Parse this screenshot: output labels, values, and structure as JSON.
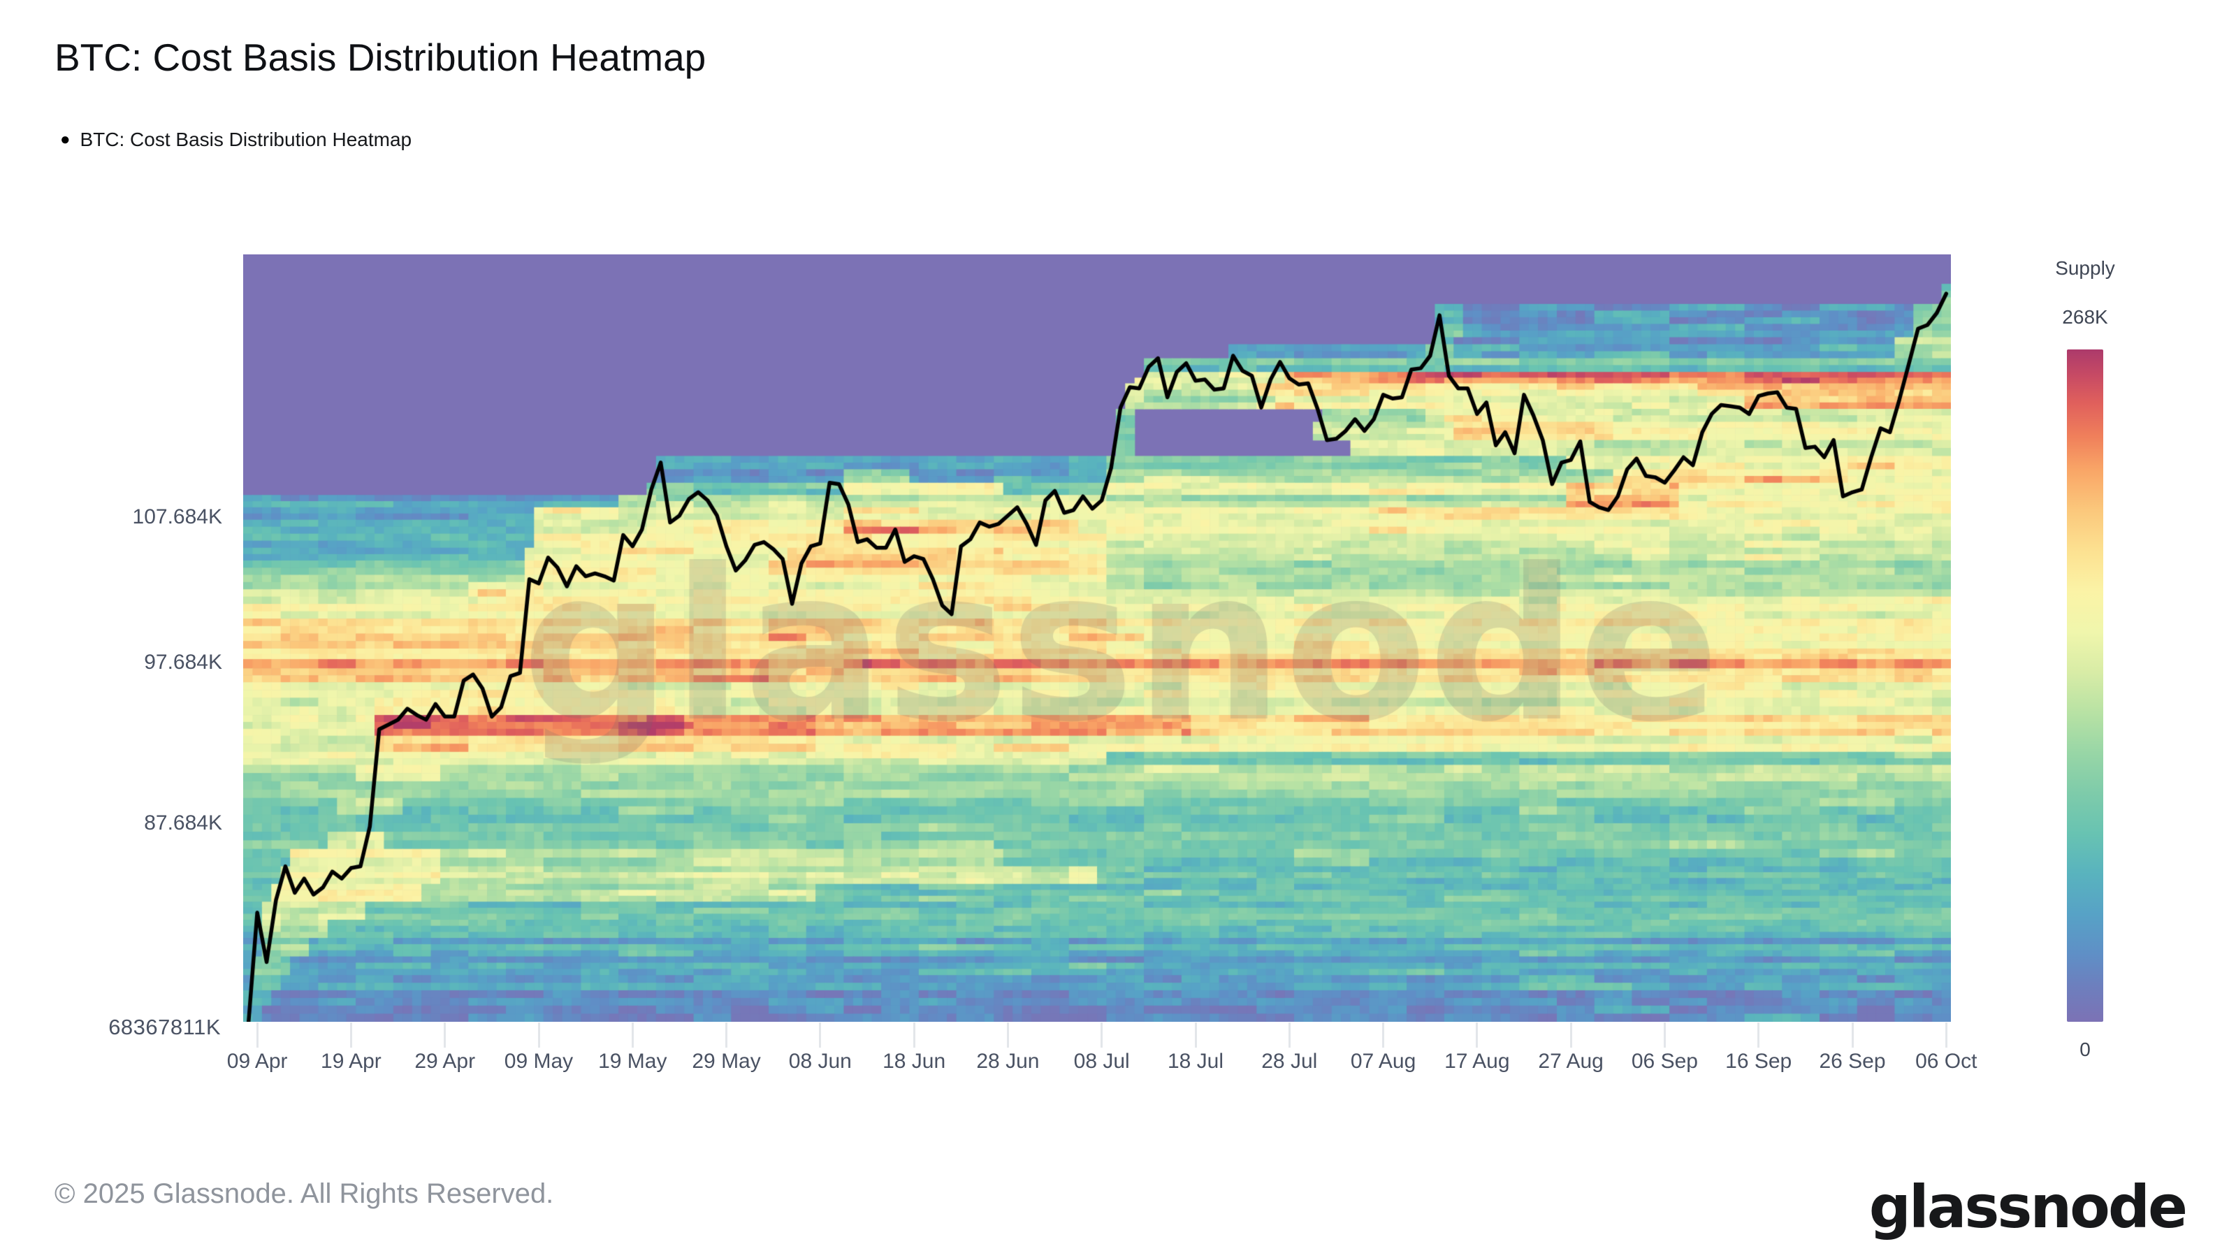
{
  "header": {
    "title": "BTC: Cost Basis Distribution Heatmap"
  },
  "legend": {
    "marker": "●",
    "label": "BTC: Cost Basis Distribution Heatmap"
  },
  "watermark": "glassnode",
  "footer": {
    "copyright": "© 2025 Glassnode. All Rights Reserved.",
    "brand": "glassnode"
  },
  "colorbar": {
    "title": "Supply",
    "max_label": "268K",
    "min_label": "0",
    "zero_color": "#7C72B5",
    "stops": [
      [
        0.0,
        "#7C72B5"
      ],
      [
        0.05,
        "#6E7EBD"
      ],
      [
        0.1,
        "#5F8FC6"
      ],
      [
        0.16,
        "#57A2C6"
      ],
      [
        0.22,
        "#59B3BE"
      ],
      [
        0.28,
        "#68C3B2"
      ],
      [
        0.34,
        "#7ECBAA"
      ],
      [
        0.4,
        "#98D6A6"
      ],
      [
        0.46,
        "#B8E2A4"
      ],
      [
        0.52,
        "#D8ECA6"
      ],
      [
        0.58,
        "#F0F6AC"
      ],
      [
        0.64,
        "#FBF3A6"
      ],
      [
        0.7,
        "#FCE191"
      ],
      [
        0.76,
        "#FBC87C"
      ],
      [
        0.82,
        "#F9A667"
      ],
      [
        0.87,
        "#F0805B"
      ],
      [
        0.92,
        "#E0605C"
      ],
      [
        0.96,
        "#C84B64"
      ],
      [
        1.0,
        "#AC3A6B"
      ]
    ]
  },
  "axes": {
    "y_ticks": [
      {
        "label": "107.684K",
        "price_k": 107.684
      },
      {
        "label": "97.684K",
        "price_k": 97.684
      },
      {
        "label": "87.684K",
        "price_k": 87.684
      }
    ],
    "y_axis_bottom_label": "68367811K",
    "x_ticks": [
      "09 Apr",
      "19 Apr",
      "29 Apr",
      "09 May",
      "19 May",
      "29 May",
      "08 Jun",
      "18 Jun",
      "28 Jun",
      "08 Jul",
      "18 Jul",
      "28 Jul",
      "07 Aug",
      "17 Aug",
      "27 Aug",
      "06 Sep",
      "16 Sep",
      "26 Sep",
      "06 Oct"
    ],
    "x_tick_day_index": [
      1,
      11,
      21,
      31,
      41,
      51,
      61,
      71,
      81,
      91,
      101,
      111,
      121,
      131,
      141,
      151,
      161,
      171,
      181
    ]
  },
  "chart_data": {
    "type": "heatmap",
    "title": "BTC: Cost Basis Distribution Heatmap",
    "x_start_date": "2025-04-08",
    "x_end_date": "2025-10-06",
    "days": 182,
    "price_scale": "log",
    "price_range_k": [
      76.6,
      128.5
    ],
    "supply_range": [
      0,
      268000
    ],
    "line_color": "#000000",
    "initial_max_visited_k": 108.6,
    "price_line_k": [
      76.3,
      82.6,
      79.9,
      83.3,
      85.2,
      83.7,
      84.5,
      83.6,
      84.0,
      84.9,
      84.5,
      85.1,
      85.2,
      87.5,
      93.4,
      93.7,
      94.0,
      94.7,
      94.3,
      94.0,
      95.0,
      94.2,
      94.2,
      96.5,
      96.9,
      96.0,
      94.2,
      94.8,
      96.8,
      97.0,
      103.3,
      103.0,
      104.8,
      104.1,
      102.8,
      104.2,
      103.5,
      103.7,
      103.5,
      103.2,
      106.4,
      105.6,
      106.8,
      109.7,
      111.7,
      107.3,
      107.8,
      109.0,
      109.5,
      108.9,
      107.8,
      105.6,
      103.9,
      104.6,
      105.7,
      105.9,
      105.4,
      104.7,
      101.6,
      104.4,
      105.6,
      105.8,
      110.2,
      110.1,
      108.6,
      105.9,
      106.1,
      105.5,
      105.5,
      106.8,
      104.5,
      104.9,
      104.7,
      103.3,
      101.5,
      100.9,
      105.6,
      106.1,
      107.3,
      107.0,
      107.2,
      107.8,
      108.4,
      107.2,
      105.7,
      108.9,
      109.6,
      108.0,
      108.2,
      109.2,
      108.3,
      108.9,
      111.3,
      115.9,
      117.5,
      117.4,
      119.1,
      119.8,
      116.7,
      118.7,
      119.4,
      118.0,
      118.1,
      117.3,
      117.4,
      120.0,
      118.8,
      118.4,
      115.9,
      118.1,
      119.5,
      118.2,
      117.7,
      117.8,
      115.8,
      113.4,
      113.5,
      114.1,
      115.0,
      114.1,
      115.0,
      116.9,
      116.6,
      116.7,
      118.9,
      119.0,
      120.0,
      123.3,
      118.4,
      117.4,
      117.4,
      115.4,
      116.3,
      113.0,
      114.0,
      112.4,
      116.9,
      115.3,
      113.4,
      110.1,
      111.7,
      111.9,
      113.3,
      108.8,
      108.4,
      108.2,
      109.2,
      111.2,
      112.0,
      110.7,
      110.6,
      110.2,
      111.1,
      112.1,
      111.5,
      114.0,
      115.4,
      116.1,
      116.0,
      115.9,
      115.4,
      116.8,
      117.0,
      117.1,
      115.9,
      115.8,
      112.8,
      112.9,
      112.1,
      113.4,
      109.2,
      109.5,
      109.7,
      112.1,
      114.3,
      114.0,
      116.5,
      119.3,
      122.2,
      122.5,
      123.5,
      125.1
    ],
    "bands": [
      [
        126.5,
        124.8,
        0.3,
        179,
        []
      ],
      [
        124.8,
        121.5,
        0.12,
        127,
        [
          [
            127,
            129,
            0.28
          ],
          [
            178,
            182,
            0.38
          ]
        ]
      ],
      [
        121.5,
        119.8,
        0.14,
        105,
        [
          [
            126,
            128,
            0.3
          ],
          [
            176,
            182,
            0.45
          ]
        ]
      ],
      [
        119.8,
        118.7,
        0.3,
        96,
        [
          [
            150,
            182,
            0.3
          ]
        ]
      ],
      [
        118.7,
        117.8,
        0.55,
        95,
        [
          [
            111,
            119,
            0.78
          ],
          [
            120,
            182,
            0.86
          ]
        ]
      ],
      [
        117.8,
        116.8,
        0.5,
        94,
        [
          [
            108,
            125,
            0.66
          ],
          [
            126,
            154,
            0.6
          ],
          [
            155,
            182,
            0.76
          ]
        ]
      ],
      [
        116.8,
        115.8,
        0.45,
        94,
        [
          [
            110,
            135,
            0.6
          ],
          [
            136,
            159,
            0.55
          ],
          [
            160,
            182,
            0.8
          ]
        ]
      ],
      [
        115.8,
        114.8,
        0,
        93,
        [
          [
            93,
            94,
            0.3
          ],
          [
            115,
            125,
            0.45
          ],
          [
            126,
            145,
            0.62
          ],
          [
            146,
            182,
            0.55
          ]
        ]
      ],
      [
        114.8,
        113.4,
        0,
        93,
        [
          [
            93,
            94,
            0.3
          ],
          [
            114,
            128,
            0.5
          ],
          [
            129,
            145,
            0.66
          ],
          [
            146,
            182,
            0.58
          ]
        ]
      ],
      [
        113.4,
        112.2,
        0,
        92,
        [
          [
            92,
            94,
            0.3
          ],
          [
            118,
            135,
            0.55
          ],
          [
            136,
            182,
            0.5
          ]
        ]
      ],
      [
        112.2,
        111.2,
        0.14,
        44,
        [
          [
            92,
            140,
            0.3
          ],
          [
            141,
            170,
            0.55
          ],
          [
            171,
            182,
            0.62
          ]
        ]
      ],
      [
        111.2,
        110.2,
        0.16,
        44,
        [
          [
            64,
            70,
            0.4
          ],
          [
            92,
            145,
            0.45
          ],
          [
            146,
            170,
            0.7
          ],
          [
            171,
            182,
            0.62
          ]
        ]
      ],
      [
        110.2,
        109.3,
        0.3,
        41,
        [
          [
            64,
            80,
            0.6
          ],
          [
            92,
            140,
            0.55
          ],
          [
            141,
            152,
            0.72
          ],
          [
            153,
            182,
            0.58
          ]
        ]
      ],
      [
        109.3,
        108.4,
        0.17,
        0,
        [
          [
            40,
            53,
            0.45
          ],
          [
            54,
            85,
            0.5
          ],
          [
            86,
            91,
            0.6
          ],
          [
            92,
            140,
            0.45
          ],
          [
            141,
            152,
            0.8
          ],
          [
            153,
            182,
            0.6
          ]
        ]
      ],
      [
        108.4,
        107.5,
        0.17,
        0,
        [
          [
            31,
            91,
            0.55
          ],
          [
            92,
            120,
            0.6
          ],
          [
            121,
            152,
            0.7
          ],
          [
            153,
            182,
            0.6
          ]
        ]
      ],
      [
        107.5,
        106.5,
        0.2,
        0,
        [
          [
            31,
            42,
            0.5
          ],
          [
            43,
            63,
            0.6
          ],
          [
            64,
            88,
            0.72
          ],
          [
            89,
            182,
            0.55
          ]
        ]
      ],
      [
        106.5,
        105.5,
        0.22,
        0,
        [
          [
            31,
            55,
            0.6
          ],
          [
            56,
            66,
            0.7
          ],
          [
            67,
            91,
            0.62
          ],
          [
            92,
            182,
            0.5
          ]
        ]
      ],
      [
        105.5,
        104.6,
        0.25,
        0,
        [
          [
            30,
            57,
            0.62
          ],
          [
            58,
            80,
            0.74
          ],
          [
            81,
            91,
            0.62
          ],
          [
            92,
            182,
            0.52
          ]
        ]
      ],
      [
        104.6,
        103.6,
        0.3,
        0,
        [
          [
            30,
            55,
            0.6
          ],
          [
            56,
            91,
            0.66
          ],
          [
            92,
            182,
            0.4
          ]
        ]
      ],
      [
        103.6,
        102.6,
        0.45,
        0,
        [
          [
            30,
            91,
            0.58
          ],
          [
            92,
            182,
            0.44
          ]
        ]
      ],
      [
        102.6,
        101.6,
        0.5,
        0,
        [
          [
            25,
            91,
            0.6
          ],
          [
            92,
            182,
            0.5
          ]
        ]
      ],
      [
        101.6,
        100.6,
        0.62,
        0,
        [
          [
            92,
            182,
            0.58
          ]
        ]
      ],
      [
        100.6,
        99.6,
        0.68,
        0,
        [
          [
            92,
            182,
            0.62
          ]
        ]
      ],
      [
        99.6,
        98.6,
        0.72,
        0,
        [
          [
            60,
            91,
            0.66
          ],
          [
            92,
            182,
            0.6
          ]
        ]
      ],
      [
        98.6,
        97.9,
        0.66,
        0,
        []
      ],
      [
        97.9,
        97.3,
        0.88,
        0,
        [
          [
            66,
            69,
            0.97
          ],
          [
            150,
            162,
            0.8
          ],
          [
            163,
            182,
            0.85
          ]
        ]
      ],
      [
        97.3,
        96.4,
        0.72,
        0,
        [
          [
            92,
            182,
            0.66
          ]
        ]
      ],
      [
        96.4,
        95.4,
        0.6,
        0,
        [
          [
            20,
            40,
            0.66
          ]
        ]
      ],
      [
        95.4,
        94.3,
        0.55,
        0,
        [
          [
            14,
            45,
            0.64
          ]
        ]
      ],
      [
        94.3,
        93.0,
        0.55,
        0,
        [
          [
            14,
            42,
            0.88
          ],
          [
            43,
            46,
            0.97
          ],
          [
            47,
            60,
            0.86
          ],
          [
            61,
            100,
            0.8
          ],
          [
            101,
            182,
            0.68
          ]
        ]
      ],
      [
        93.0,
        92.0,
        0.5,
        0,
        [
          [
            14,
            60,
            0.72
          ],
          [
            61,
            182,
            0.6
          ]
        ]
      ],
      [
        92.0,
        91.2,
        0.55,
        0,
        [
          [
            92,
            182,
            0.3
          ]
        ]
      ],
      [
        91.2,
        90.2,
        0.45,
        0,
        [
          [
            12,
            20,
            0.6
          ],
          [
            92,
            182,
            0.5
          ]
        ]
      ],
      [
        90.2,
        89.2,
        0.4,
        0,
        []
      ],
      [
        89.2,
        88.2,
        0.34,
        0,
        [
          [
            10,
            16,
            0.5
          ]
        ]
      ],
      [
        88.2,
        87.2,
        0.3,
        0,
        []
      ],
      [
        87.2,
        86.2,
        0.34,
        0,
        [
          [
            9,
            14,
            0.55
          ]
        ]
      ],
      [
        86.2,
        85.2,
        0.3,
        0,
        [
          [
            5,
            20,
            0.6
          ],
          [
            21,
            80,
            0.45
          ]
        ]
      ],
      [
        85.2,
        84.2,
        0.28,
        0,
        [
          [
            4,
            20,
            0.62
          ],
          [
            21,
            90,
            0.5
          ]
        ]
      ],
      [
        84.2,
        83.2,
        0.26,
        0,
        [
          [
            3,
            18,
            0.6
          ],
          [
            19,
            60,
            0.42
          ]
        ]
      ],
      [
        83.2,
        82.2,
        0.24,
        0,
        [
          [
            2,
            12,
            0.5
          ],
          [
            13,
            182,
            0.3
          ]
        ]
      ],
      [
        82.2,
        81.2,
        0.22,
        0,
        [
          [
            2,
            8,
            0.45
          ],
          [
            9,
            182,
            0.26
          ]
        ]
      ],
      [
        81.2,
        80.2,
        0.2,
        0,
        [
          [
            2,
            6,
            0.4
          ]
        ]
      ],
      [
        80.2,
        79.2,
        0.16,
        0,
        [
          [
            1,
            4,
            0.35
          ]
        ]
      ],
      [
        79.2,
        78.4,
        0.14,
        0,
        [
          [
            1,
            3,
            0.3
          ]
        ]
      ],
      [
        78.4,
        77.6,
        0.1,
        0,
        [
          [
            0,
            2,
            0.25
          ]
        ]
      ],
      [
        77.6,
        76.6,
        0.07,
        0,
        [
          [
            0,
            1,
            0.2
          ]
        ]
      ]
    ]
  }
}
